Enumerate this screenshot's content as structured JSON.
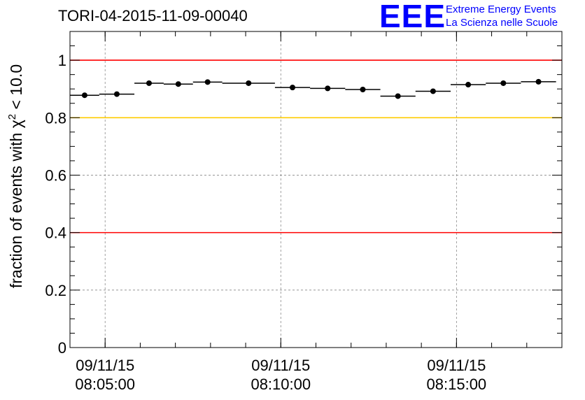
{
  "logo": {
    "mark": "EEE",
    "line1": "Extreme Energy Events",
    "line2": "La Scienza nelle Scuole",
    "color": "#0000ff"
  },
  "chart_data": {
    "type": "scatter",
    "title": "TORI-04-2015-11-09-00040",
    "xlabel": "",
    "ylabel_prefix": "fraction of events with ",
    "ylabel_symbol": "χ",
    "ylabel_sup": "2",
    "ylabel_suffix": " < 10.0",
    "xlim": [
      "08:04:00",
      "08:18:00"
    ],
    "ylim": [
      0,
      1.1
    ],
    "y_ticks": [
      0,
      0.2,
      0.4,
      0.6,
      0.8,
      1
    ],
    "y_tick_labels": [
      "0",
      "0.2",
      "0.4",
      "0.6",
      "0.8",
      "1"
    ],
    "x_ticks": [
      {
        "x": "08:05:00",
        "date": "09/11/15",
        "time": "08:05:00"
      },
      {
        "x": "08:10:00",
        "date": "09/11/15",
        "time": "08:10:00"
      },
      {
        "x": "08:15:00",
        "date": "09/11/15",
        "time": "08:15:00"
      }
    ],
    "grid": true,
    "points": [
      {
        "x_start": "08:04:00",
        "x_end": "08:04:50",
        "y": 0.878
      },
      {
        "x_start": "08:04:50",
        "x_end": "08:05:50",
        "y": 0.882
      },
      {
        "x_start": "08:05:50",
        "x_end": "08:06:40",
        "y": 0.92
      },
      {
        "x_start": "08:06:40",
        "x_end": "08:07:30",
        "y": 0.917
      },
      {
        "x_start": "08:07:30",
        "x_end": "08:08:20",
        "y": 0.924
      },
      {
        "x_start": "08:08:20",
        "x_end": "08:09:50",
        "y": 0.92
      },
      {
        "x_start": "08:09:50",
        "x_end": "08:10:50",
        "y": 0.905
      },
      {
        "x_start": "08:10:50",
        "x_end": "08:11:50",
        "y": 0.902
      },
      {
        "x_start": "08:11:50",
        "x_end": "08:12:50",
        "y": 0.898
      },
      {
        "x_start": "08:12:50",
        "x_end": "08:13:50",
        "y": 0.875
      },
      {
        "x_start": "08:13:50",
        "x_end": "08:14:50",
        "y": 0.892
      },
      {
        "x_start": "08:14:50",
        "x_end": "08:15:50",
        "y": 0.915
      },
      {
        "x_start": "08:15:50",
        "x_end": "08:16:50",
        "y": 0.92
      },
      {
        "x_start": "08:16:50",
        "x_end": "08:17:50",
        "y": 0.925
      }
    ],
    "reference_lines": [
      {
        "y": 1.0,
        "color": "#ff0000"
      },
      {
        "y": 0.8,
        "color": "#ffcc00"
      },
      {
        "y": 0.4,
        "color": "#ff0000"
      }
    ]
  }
}
